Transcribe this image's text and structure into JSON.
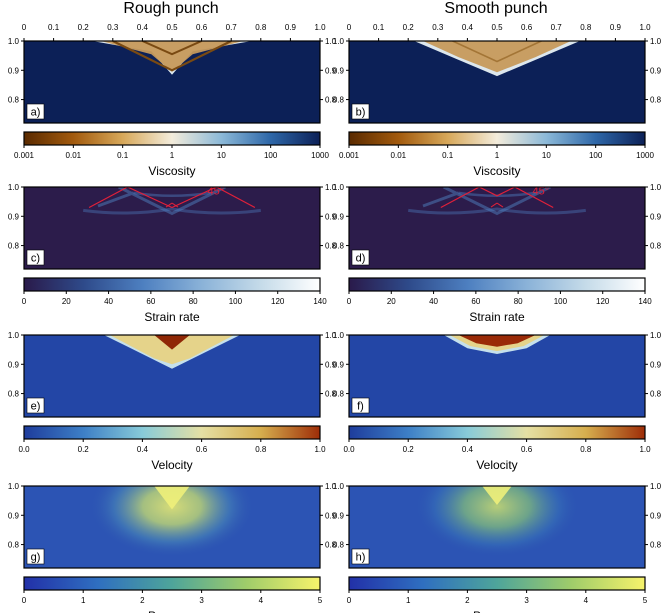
{
  "columns": [
    {
      "title": "Rough punch"
    },
    {
      "title": "Smooth punch"
    }
  ],
  "chart_data": {
    "type": "heatmap",
    "x_axis": {
      "range": [
        0,
        1
      ],
      "ticks": [
        "0",
        "0.1",
        "0.2",
        "0.3",
        "0.4",
        "0.5",
        "0.6",
        "0.7",
        "0.8",
        "0.9",
        "1.0"
      ]
    },
    "y_axis": {
      "range": [
        0.72,
        1.0
      ],
      "ticks": [
        "1.0",
        "0.9",
        "0.8"
      ]
    },
    "annotation_angle": "45°",
    "annotation_color": "#e0203a",
    "rows": [
      {
        "field": "viscosity",
        "colorbar_label": "Viscosity",
        "scale": "log",
        "colorbar_ticks": [
          "0.001",
          "0.01",
          "0.1",
          "1",
          "10",
          "100",
          "1000"
        ],
        "colormap": [
          "#5a2a00",
          "#a25a0d",
          "#d7a85a",
          "#f3ecdb",
          "#8cb9d8",
          "#2e67a8",
          "#0c2057"
        ],
        "panels": [
          {
            "label": "a)",
            "punch": "rough",
            "background_color": "#0c2057"
          },
          {
            "label": "b)",
            "punch": "smooth",
            "background_color": "#0c2057"
          }
        ]
      },
      {
        "field": "strain_rate",
        "colorbar_label": "Strain rate",
        "scale": "linear",
        "range": [
          0,
          140
        ],
        "colorbar_ticks": [
          "0",
          "20",
          "40",
          "60",
          "80",
          "100",
          "120",
          "140"
        ],
        "colormap": [
          "#2a1a4a",
          "#2e4a8a",
          "#4d7fc0",
          "#8ab2d8",
          "#c5dbe9",
          "#ffffff"
        ],
        "panels": [
          {
            "label": "c)",
            "punch": "rough",
            "background_color": "#2c1c4b"
          },
          {
            "label": "d)",
            "punch": "smooth",
            "background_color": "#2c1c4b"
          }
        ]
      },
      {
        "field": "velocity",
        "colorbar_label": "Velocity",
        "scale": "linear",
        "range": [
          0,
          1.05
        ],
        "colorbar_ticks": [
          "0.0",
          "0.2",
          "0.4",
          "0.6",
          "0.8",
          "1.0"
        ],
        "colormap": [
          "#1e3c9c",
          "#3d7fc6",
          "#88cbd9",
          "#e5e0a4",
          "#d6ae4e",
          "#9e2d08"
        ],
        "panels": [
          {
            "label": "e)",
            "punch": "rough",
            "background_color": "#2346a6"
          },
          {
            "label": "f)",
            "punch": "smooth",
            "background_color": "#2346a6"
          }
        ]
      },
      {
        "field": "pressure",
        "colorbar_label": "Pressure",
        "scale": "linear",
        "range": [
          0,
          5
        ],
        "colorbar_ticks": [
          "0",
          "1",
          "2",
          "3",
          "4",
          "5"
        ],
        "colormap": [
          "#2230a8",
          "#2f6fc0",
          "#4ea59a",
          "#9fcc6a",
          "#f7f36b"
        ],
        "panels": [
          {
            "label": "g)",
            "punch": "rough",
            "background_color": "#2c54b4"
          },
          {
            "label": "h)",
            "punch": "smooth",
            "background_color": "#2c54b4"
          }
        ]
      }
    ]
  }
}
